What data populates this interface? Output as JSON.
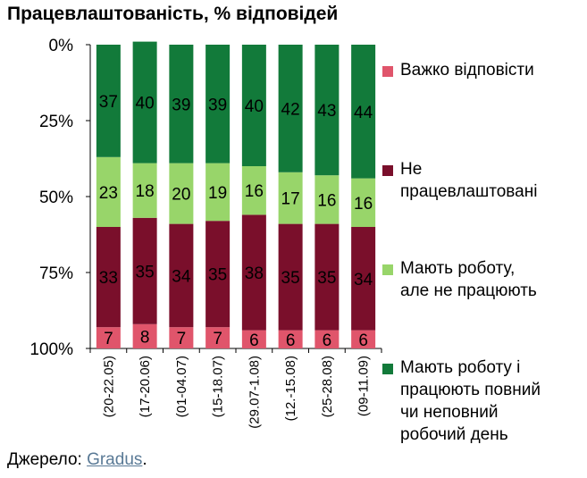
{
  "chart_data": {
    "type": "bar",
    "stacked": true,
    "orientation": "vertical",
    "title": "Працевлаштованість, % відповідей",
    "categories": [
      "(20-22.05)",
      "(17-20.06)",
      "(01-04.07)",
      "(15-18.07)",
      "(29.07-1.08)",
      "(12.-15.08)",
      "(25-28.08)",
      "(09-11.09)"
    ],
    "y_tick_labels": [
      "0%",
      "25%",
      "50%",
      "75%",
      "100%"
    ],
    "ylim": [
      0,
      100
    ],
    "y_inverted": true,
    "grid": false,
    "legend_position": "right",
    "series": [
      {
        "name": "Важко відповісти",
        "color": "#e0556b",
        "values": [
          7,
          8,
          7,
          7,
          6,
          6,
          6,
          6
        ]
      },
      {
        "name": "Не працевлаштовані",
        "color": "#7a0f2b",
        "values": [
          33,
          35,
          34,
          35,
          38,
          35,
          35,
          34
        ]
      },
      {
        "name": "Мають роботу, але не працюють",
        "color": "#98d56a",
        "values": [
          23,
          18,
          20,
          19,
          16,
          17,
          16,
          16
        ]
      },
      {
        "name": "Мають роботу і працюють повний чи неповний робочий день",
        "color": "#127a3a",
        "values": [
          37,
          40,
          39,
          39,
          40,
          42,
          43,
          44
        ]
      }
    ]
  },
  "legend": [
    {
      "lines": [
        "Важко відповісти"
      ],
      "color": "#e0556b"
    },
    {
      "lines": [
        "Не",
        "працевлаштовані"
      ],
      "color": "#7a0f2b"
    },
    {
      "lines": [
        "Мають роботу,",
        "але не працюють"
      ],
      "color": "#98d56a"
    },
    {
      "lines": [
        "Мають роботу і",
        "працюють повний",
        "чи неповний",
        "робочий день"
      ],
      "color": "#127a3a"
    }
  ],
  "source": {
    "prefix": "Джерело: ",
    "link": "Gradus",
    "suffix": "."
  }
}
